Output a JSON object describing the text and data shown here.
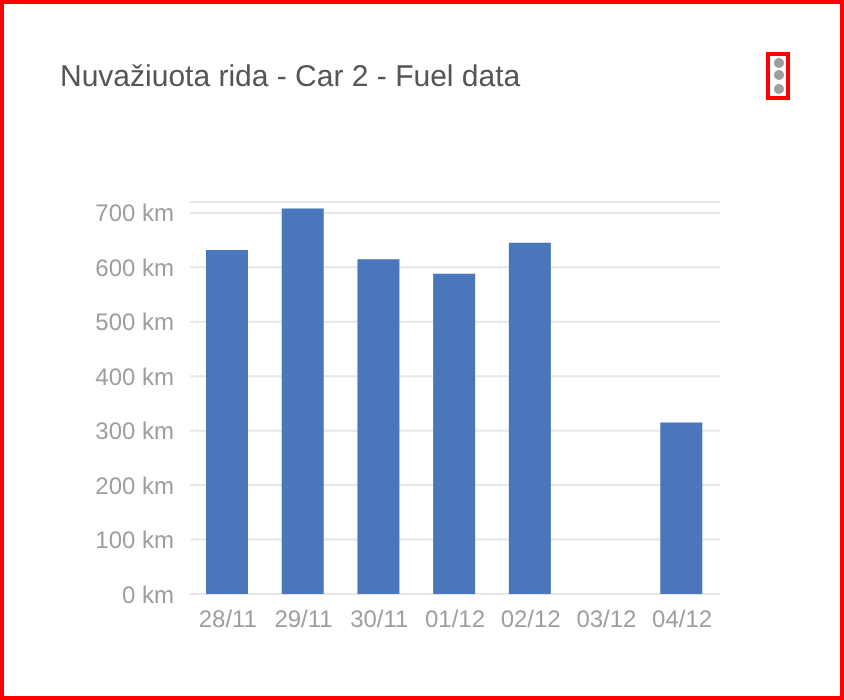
{
  "chart_data": {
    "type": "bar",
    "title": "Nuvažiuota rida - Car 2 - Fuel data",
    "categories": [
      "28/11",
      "29/11",
      "30/11",
      "01/12",
      "02/12",
      "03/12",
      "04/12"
    ],
    "values": [
      632,
      708,
      615,
      588,
      645,
      null,
      315
    ],
    "color": "#4a76bb",
    "ylim": [
      0,
      720
    ],
    "yticks": [
      {
        "value": 0,
        "label": "0 km"
      },
      {
        "value": 100,
        "label": "100 km"
      },
      {
        "value": 200,
        "label": "200 km"
      },
      {
        "value": 300,
        "label": "300 km"
      },
      {
        "value": 400,
        "label": "400 km"
      },
      {
        "value": 500,
        "label": "500 km"
      },
      {
        "value": 600,
        "label": "600 km"
      },
      {
        "value": 700,
        "label": "700 km"
      }
    ],
    "grid": "y",
    "legend": false
  }
}
